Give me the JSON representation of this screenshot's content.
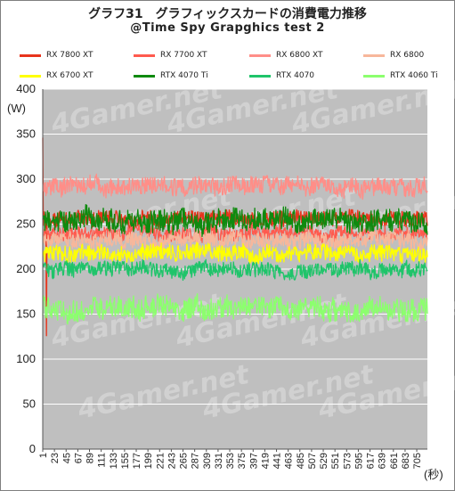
{
  "chart_data": {
    "type": "line",
    "title": "グラフ31　グラフィックスカードの消費電力推移",
    "subtitle": "@Time Spy Grapghics test 2",
    "ylabel": "(W)",
    "xlabel": "(秒)",
    "ylim": [
      0,
      400
    ],
    "yticks": [
      0,
      50,
      100,
      150,
      200,
      250,
      300,
      350,
      400
    ],
    "xlim": [
      1,
      725
    ],
    "xticks": [
      1,
      23,
      45,
      67,
      89,
      111,
      133,
      155,
      177,
      199,
      221,
      243,
      265,
      287,
      309,
      331,
      353,
      375,
      397,
      419,
      441,
      463,
      485,
      507,
      529,
      551,
      573,
      595,
      617,
      639,
      661,
      683,
      705
    ],
    "legend_position": "top",
    "grid": true,
    "plot_background": "#bfbfbf",
    "series": [
      {
        "name": "RX 7800 XT",
        "color": "#e8341c",
        "mean": 256,
        "noise": 10,
        "spike_at": 1,
        "spike_value": 346,
        "dip_at": 8,
        "dip_value": 126
      },
      {
        "name": "RX 7700 XT",
        "color": "#ff5a4e",
        "mean": 240,
        "noise": 10
      },
      {
        "name": "RX 6800 XT",
        "color": "#ff8e88",
        "mean": 292,
        "noise": 12
      },
      {
        "name": "RX 6800",
        "color": "#f7b79b",
        "mean": 232,
        "noise": 11
      },
      {
        "name": "RX 6700 XT",
        "color": "#ffff00",
        "mean": 217,
        "noise": 11
      },
      {
        "name": "RTX 4070 Ti",
        "color": "#0f8a0f",
        "mean": 253,
        "noise": 15
      },
      {
        "name": "RTX 4070",
        "color": "#1fc46a",
        "mean": 199,
        "noise": 10
      },
      {
        "name": "RTX 4060 Ti",
        "color": "#8cff6e",
        "mean": 156,
        "noise": 15
      }
    ]
  },
  "watermark": "4Gamer.net"
}
